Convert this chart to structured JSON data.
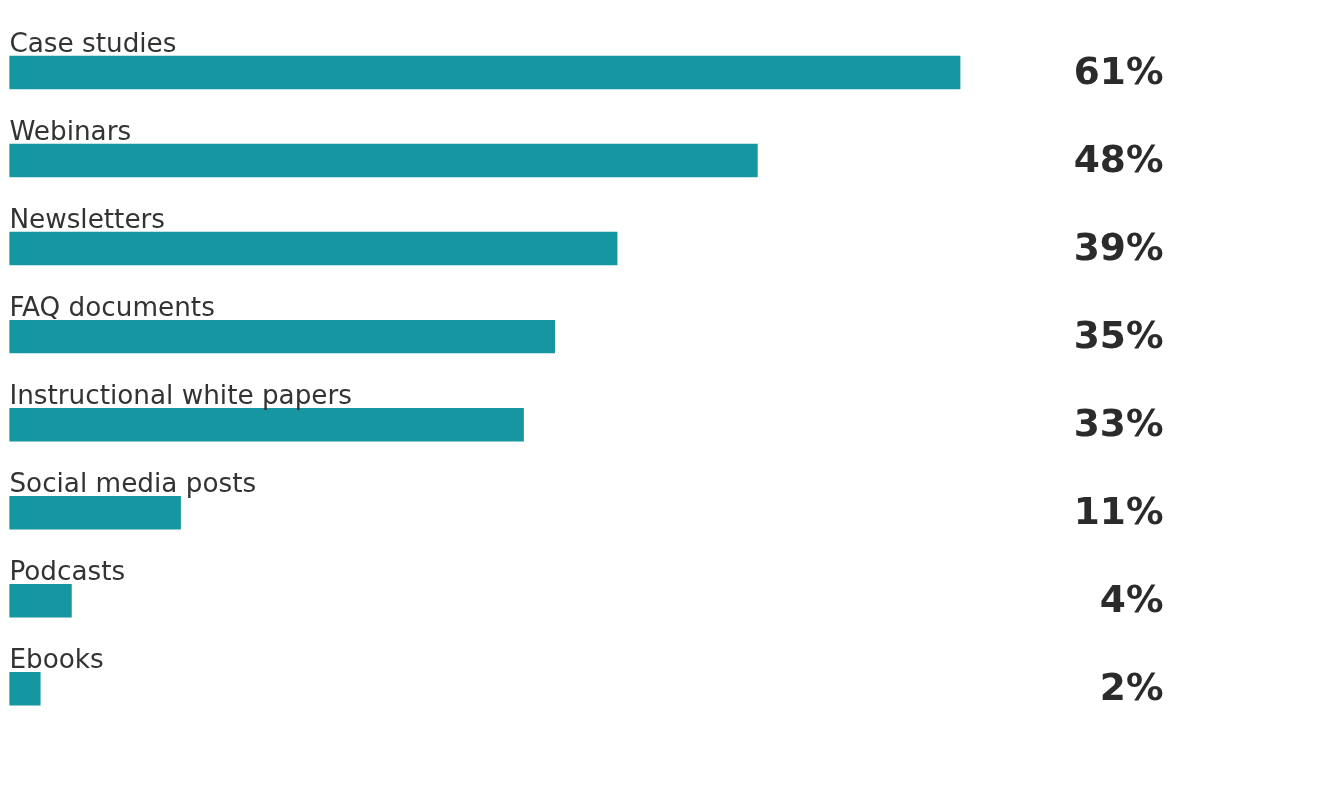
{
  "chart_data": {
    "type": "bar",
    "orientation": "horizontal",
    "categories": [
      "Case studies",
      "Webinars",
      "Newsletters",
      "FAQ documents",
      "Instructional white papers",
      "Social media posts",
      "Podcasts",
      "Ebooks"
    ],
    "values": [
      61,
      48,
      39,
      35,
      33,
      11,
      4,
      2
    ],
    "value_labels": [
      "61%",
      "48%",
      "39%",
      "35%",
      "33%",
      "11%",
      "4%",
      "2%"
    ],
    "color": "#1696a0"
  }
}
